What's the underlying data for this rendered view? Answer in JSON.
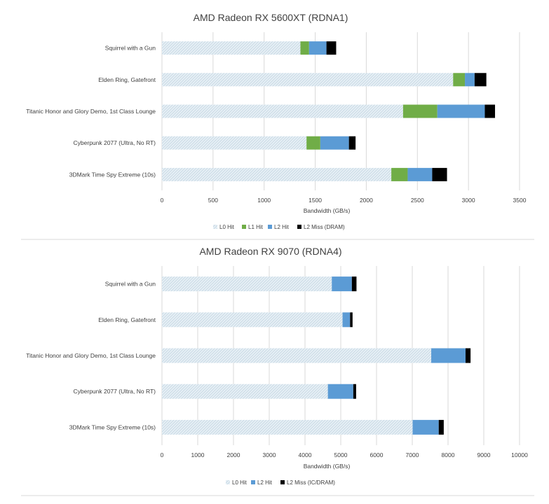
{
  "colors": {
    "l0": "#dbe7ef",
    "l1": "#70ad47",
    "l2": "#5b9bd5",
    "miss": "#000000",
    "grid": "#d9d9d9",
    "divider": "#d9d9d9"
  },
  "chart_data": [
    {
      "type": "bar",
      "orientation": "horizontal",
      "stacked": true,
      "title": "AMD Radeon RX 5600XT (RDNA1)",
      "xlabel": "Bandwidth (GB/s)",
      "ylabel": "",
      "xlim": [
        0,
        3500
      ],
      "ticks": [
        "0",
        "500",
        "1000",
        "1500",
        "2000",
        "2500",
        "3000",
        "3500"
      ],
      "grid": true,
      "legend_position": "bottom",
      "categories": [
        "Squirrel with a Gun",
        "Elden Ring, Gatefront",
        "Titanic Honor and Glory Demo, 1st Class Lounge",
        "Cyberpunk 2077 (Ultra, No RT)",
        "3DMark Time Spy Extreme (10s)"
      ],
      "series": [
        {
          "name": "L0 Hit",
          "color_key": "l0",
          "values": [
            1355,
            2850,
            2360,
            1415,
            2245
          ]
        },
        {
          "name": "L1 Hit",
          "color_key": "l1",
          "values": [
            85,
            115,
            335,
            135,
            160
          ]
        },
        {
          "name": "L2 Hit",
          "color_key": "l2",
          "values": [
            170,
            95,
            465,
            280,
            240
          ]
        },
        {
          "name": "L2 Miss (DRAM)",
          "color_key": "miss",
          "values": [
            95,
            115,
            100,
            65,
            145
          ]
        }
      ]
    },
    {
      "type": "bar",
      "orientation": "horizontal",
      "stacked": true,
      "title": "AMD Radeon RX 9070 (RDNA4)",
      "xlabel": "Bandwidth (GB/s)",
      "ylabel": "",
      "xlim": [
        0,
        10000
      ],
      "ticks": [
        "0",
        "1000",
        "2000",
        "3000",
        "4000",
        "5000",
        "6000",
        "7000",
        "8000",
        "9000",
        "10000"
      ],
      "grid": true,
      "legend_position": "bottom",
      "categories": [
        "Squirrel with a Gun",
        "Elden Ring, Gatefront",
        "Titanic Honor and Glory Demo, 1st Class Lounge",
        "Cyberpunk 2077 (Ultra, No RT)",
        "3DMark Time Spy Extreme (10s)"
      ],
      "series": [
        {
          "name": "L0 Hit",
          "color_key": "l0",
          "values": [
            4750,
            5050,
            7530,
            4640,
            7010
          ]
        },
        {
          "name": "L2 Hit",
          "color_key": "l2",
          "values": [
            560,
            210,
            960,
            710,
            730
          ]
        },
        {
          "name": "L2 Miss (IC/DRAM)",
          "color_key": "miss",
          "values": [
            130,
            70,
            140,
            80,
            140
          ]
        }
      ]
    }
  ]
}
